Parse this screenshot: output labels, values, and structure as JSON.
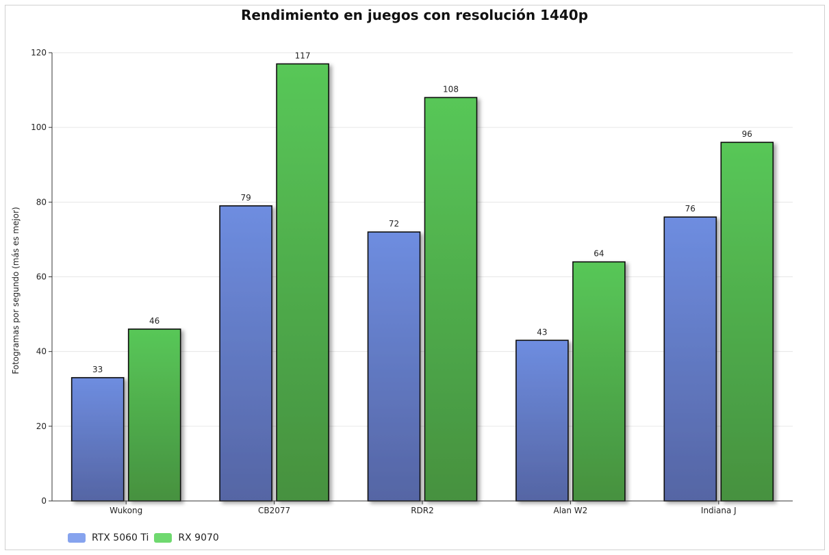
{
  "chart_data": {
    "type": "bar",
    "title": "Rendimiento en juegos con resolución 1440p",
    "xlabel": "",
    "ylabel": "Fotogramas por segundo (más es mejor)",
    "ylim": [
      0,
      120
    ],
    "yticks": [
      0,
      20,
      40,
      60,
      80,
      100,
      120
    ],
    "grid": true,
    "legend_position": "bottom-left",
    "categories": [
      "Wukong",
      "CB2077",
      "RDR2",
      "Alan W2",
      "Indiana J"
    ],
    "series": [
      {
        "name": "RTX 5060 Ti",
        "values": [
          33,
          79,
          72,
          43,
          76
        ],
        "color": "#6b88db",
        "legend_color": "#86a3ee"
      },
      {
        "name": "RX 9070",
        "values": [
          46,
          117,
          108,
          64,
          96
        ],
        "color": "#4fbf50",
        "legend_color": "#6fd96f"
      }
    ]
  }
}
